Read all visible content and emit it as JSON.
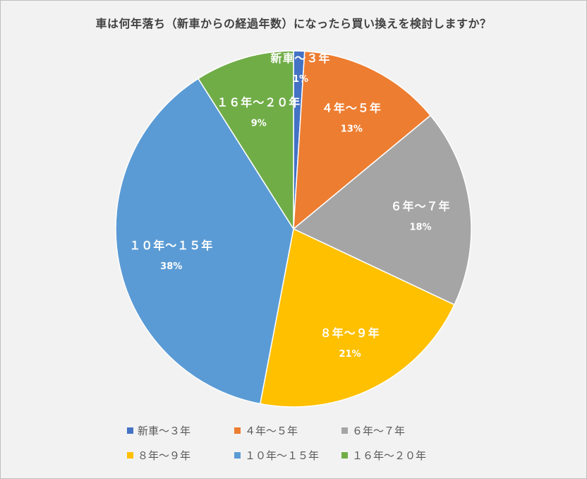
{
  "chart_data": {
    "type": "pie",
    "title": "車は何年落ち（新車からの経過年数）になったら買い換えを検討しますか？",
    "slices": [
      {
        "name": "新車～３年",
        "value": 1,
        "label": "1%",
        "color": "#4472C4"
      },
      {
        "name": "４年～５年",
        "value": 13,
        "label": "13%",
        "color": "#ED7D31"
      },
      {
        "name": "６年～７年",
        "value": 18,
        "label": "18%",
        "color": "#A5A5A5"
      },
      {
        "name": "８年～９年",
        "value": 21,
        "label": "21%",
        "color": "#FFC000"
      },
      {
        "name": "１０年～１５年",
        "value": 38,
        "label": "38%",
        "color": "#5B9BD5"
      },
      {
        "name": "１６年～２０年",
        "value": 9,
        "label": "9%",
        "color": "#70AD47"
      }
    ],
    "legend_position": "bottom"
  }
}
